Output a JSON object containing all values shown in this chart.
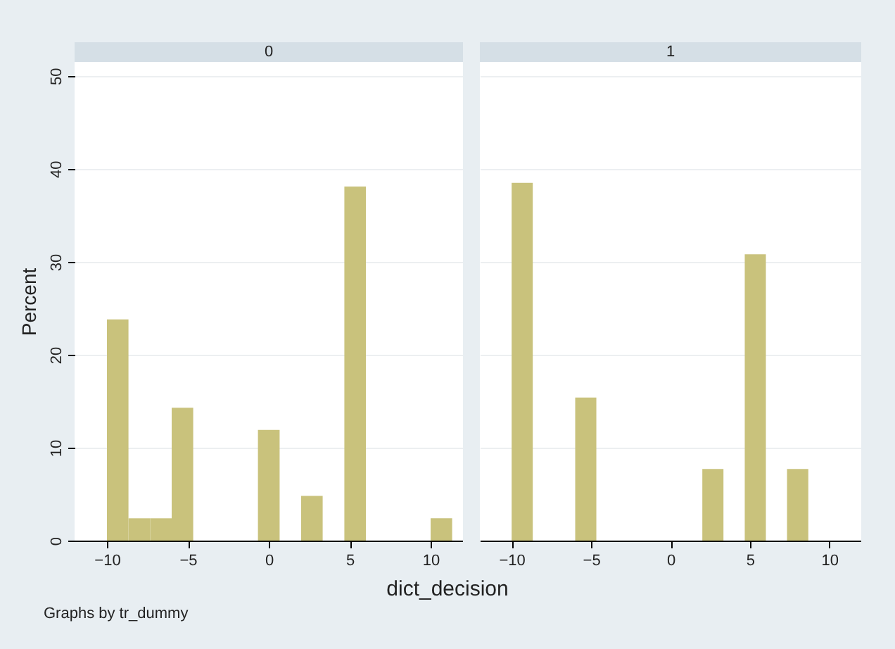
{
  "chart_data": [
    {
      "type": "histogram",
      "title": "0",
      "xlabel": "dict_decision",
      "ylabel": "Percent",
      "annotations": [
        "Graphs by tr_dummy"
      ],
      "color": "#c9c27c",
      "bins": [
        -10,
        -8.67,
        -7.33,
        -6,
        -4.67,
        -3.33,
        -2,
        -0.67,
        0.67,
        2,
        3.33,
        4.67,
        6,
        7.33,
        8.67,
        10,
        11.33
      ],
      "values": [
        23.8,
        2.4,
        2.4,
        14.3,
        0,
        0,
        0,
        11.9,
        0,
        4.8,
        0,
        38.1,
        0,
        0,
        0,
        2.4
      ],
      "xlim": [
        -12,
        12
      ],
      "xticks": [
        -10,
        -5,
        0,
        5,
        10
      ],
      "ylim": [
        0,
        51.5
      ],
      "yticks": [
        0,
        10,
        20,
        30,
        40,
        50
      ],
      "grid": "y"
    },
    {
      "type": "histogram",
      "title": "1",
      "color": "#c9c27c",
      "bins": [
        -10,
        -8.67,
        -7.33,
        -6,
        -4.67,
        -3.33,
        -2,
        -0.67,
        0.67,
        2,
        3.33,
        4.67,
        6,
        7.33,
        8.67,
        10,
        11.33
      ],
      "values": [
        38.5,
        0,
        0,
        15.4,
        0,
        0,
        0,
        0,
        0,
        7.7,
        0,
        30.8,
        0,
        7.7,
        0,
        0
      ],
      "xlim": [
        -12,
        12
      ],
      "xticks": [
        -10,
        -5,
        0,
        5,
        10
      ],
      "ylim": [
        0,
        51.5
      ],
      "yticks": [
        0,
        10,
        20,
        30,
        40,
        50
      ],
      "grid": "y",
      "tick_labels": "x"
    }
  ]
}
